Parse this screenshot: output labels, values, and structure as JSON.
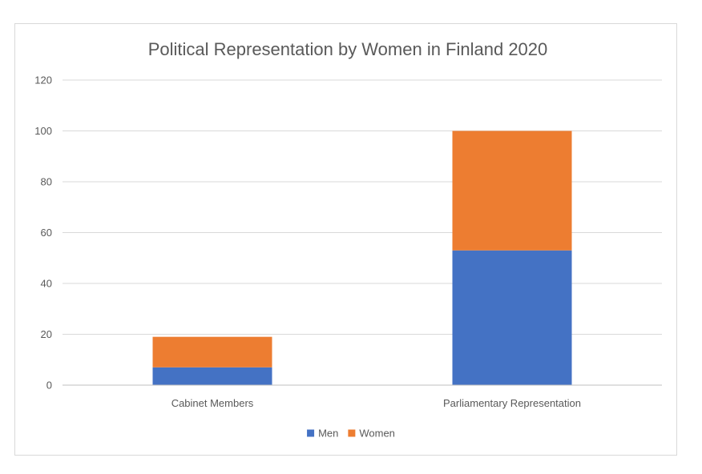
{
  "chart_data": {
    "type": "bar",
    "stacked": true,
    "title": "Political Representation by Women in Finland 2020",
    "xlabel": "",
    "ylabel": "",
    "categories": [
      "Cabinet Members",
      "Parliamentary Representation"
    ],
    "series": [
      {
        "name": "Men",
        "values": [
          7,
          53
        ],
        "color": "#4472c4"
      },
      {
        "name": "Women",
        "values": [
          12,
          47
        ],
        "color": "#ed7d31"
      }
    ],
    "ylim": [
      0,
      120
    ],
    "yticks": [
      0,
      20,
      40,
      60,
      80,
      100,
      120
    ],
    "grid": true,
    "legend_position": "bottom"
  }
}
